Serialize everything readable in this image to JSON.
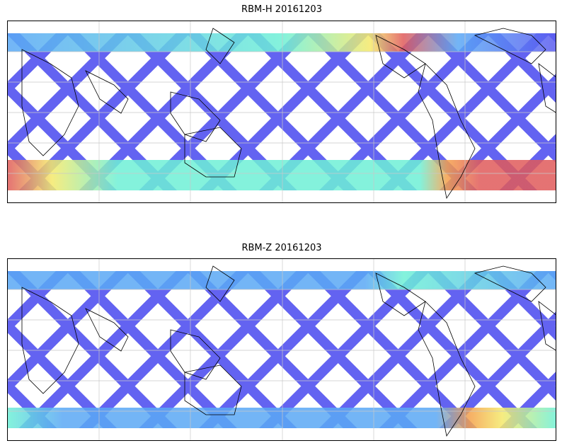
{
  "panels": [
    {
      "title": "RBM-H 20161203"
    },
    {
      "title": "RBM-Z 20161203"
    }
  ],
  "colors": {
    "low": "#5b5bf0",
    "mid_low": "#5aa8f5",
    "mid": "#6ef0d6",
    "mid_high": "#f5e96a",
    "high": "#e05a5a",
    "coast": "#000000",
    "grid": "#c8c8c8"
  }
}
